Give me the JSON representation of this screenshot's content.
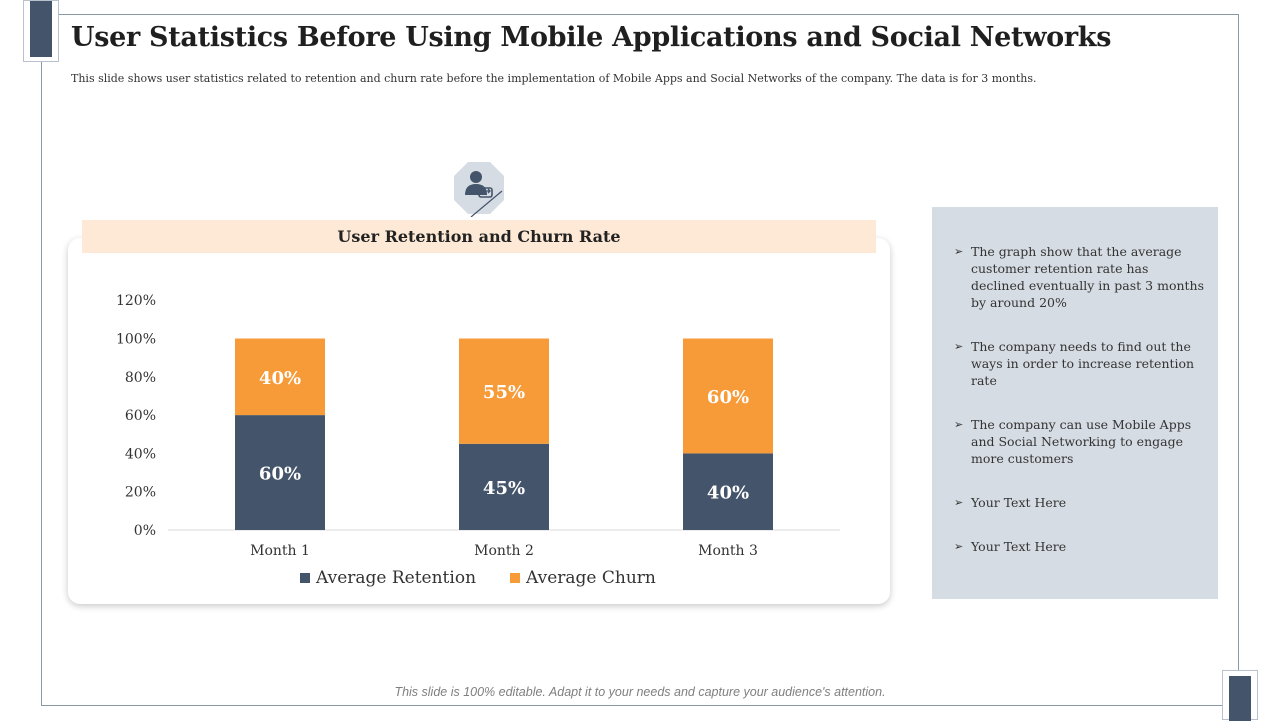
{
  "slide": {
    "title": "User Statistics Before Using Mobile Applications and Social Networks",
    "subtitle": "This slide shows user statistics related  to retention  and churn rate before the implementation  of Mobile Apps and Social Networks  of the company.  The data  is for 3 months.",
    "footer": "This slide is 100% editable. Adapt it to your needs and capture your audience's attention."
  },
  "chart_data": {
    "type": "bar",
    "stacked": true,
    "title": "User Retention and Churn Rate",
    "categories": [
      "Month 1",
      "Month 2",
      "Month 3"
    ],
    "series": [
      {
        "name": "Average Retention",
        "values": [
          60,
          45,
          40
        ],
        "labels": [
          "60%",
          "45%",
          "40%"
        ],
        "color": "#44546a"
      },
      {
        "name": "Average Churn",
        "values": [
          40,
          55,
          60
        ],
        "labels": [
          "40%",
          "55%",
          "60%"
        ],
        "color": "#f79a38"
      }
    ],
    "ylim": [
      0,
      120
    ],
    "yticks": [
      "0%",
      "20%",
      "40%",
      "60%",
      "80%",
      "100%",
      "120%"
    ],
    "ytick_values": [
      0,
      20,
      40,
      60,
      80,
      100,
      120
    ],
    "grid": false,
    "legend": "bottom"
  },
  "side_panel": {
    "bullets": [
      "The graph show that the average customer retention rate has declined eventually in past 3 months by around 20%",
      "The company needs to find out the ways in order to increase retention rate",
      "The company can use Mobile Apps and Social Networking to engage more customers",
      "Your Text Here",
      "Your Text Here"
    ]
  },
  "icons": {
    "header_icon": "user-sync-icon",
    "bullet_icon": "arrowhead-icon"
  },
  "colors": {
    "accent_dark": "#44546a",
    "accent_orange": "#f79a38",
    "header_fill": "#fde9d5",
    "panel_fill": "#d6dce3"
  }
}
